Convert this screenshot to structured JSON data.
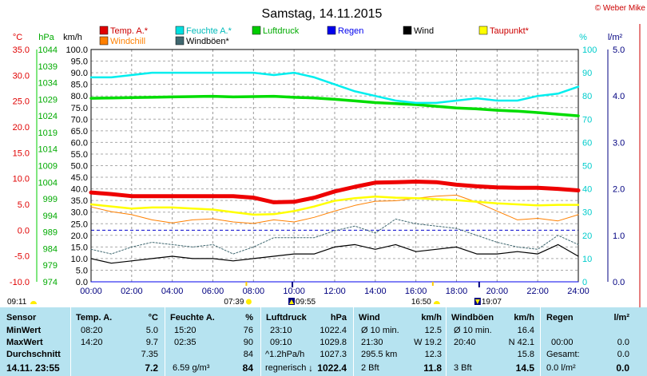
{
  "title": "Samstag, 14.11.2015",
  "copyright": "© Weber Mike",
  "legend": [
    {
      "label": "Temp. A.*",
      "color": "#e00000"
    },
    {
      "label": "Feuchte A.*",
      "color": "#00e0e0"
    },
    {
      "label": "Luftdruck",
      "color": "#00cc00"
    },
    {
      "label": "Regen",
      "color": "#0000ee"
    },
    {
      "label": "Wind",
      "color": "#000000"
    },
    {
      "label": "Taupunkt*",
      "color": "#ffff00"
    },
    {
      "label": "Windchill",
      "color": "#ff8000"
    },
    {
      "label": "Windböen*",
      "color": "#406870"
    }
  ],
  "axes": {
    "temp": {
      "unit": "°C",
      "ticks": [
        "35.0",
        "30.0",
        "25.0",
        "20.0",
        "15.0",
        "10.0",
        "5.0",
        "0.0",
        "-5.0",
        "-10.0"
      ],
      "color": "#e00000"
    },
    "pressure": {
      "unit": "hPa",
      "ticks": [
        "1044",
        "1039",
        "1034",
        "1029",
        "1024",
        "1019",
        "1014",
        "1009",
        "1004",
        "999",
        "994",
        "989",
        "984",
        "979",
        "974"
      ],
      "color": "#00aa00"
    },
    "wind": {
      "unit": "km/h",
      "ticks": [
        "100.0",
        "95.0",
        "90.0",
        "85.0",
        "80.0",
        "75.0",
        "70.0",
        "65.0",
        "60.0",
        "55.0",
        "50.0",
        "45.0",
        "40.0",
        "35.0",
        "30.0",
        "25.0",
        "20.0",
        "15.0",
        "10.0",
        "5.0",
        "0.0"
      ],
      "color": "#000000"
    },
    "humidity": {
      "unit": "%",
      "ticks": [
        "100",
        "90",
        "80",
        "70",
        "60",
        "50",
        "40",
        "30",
        "20",
        "10",
        "0"
      ],
      "color": "#00cccc"
    },
    "rain": {
      "unit": "l/m²",
      "ticks": [
        "5.0",
        "4.0",
        "3.0",
        "2.0",
        "1.0",
        "0.0"
      ],
      "color": "#000080"
    },
    "time_ticks": [
      "00:00",
      "02:00",
      "04:00",
      "06:00",
      "08:00",
      "10:00",
      "12:00",
      "14:00",
      "16:00",
      "18:00",
      "20:00",
      "22:00",
      "24:00"
    ]
  },
  "sun_times": {
    "sunrise": "07:39",
    "sunset": "16:50"
  },
  "moon_times": {
    "moonrise": "09:55",
    "moonset": "19:07"
  },
  "twilight": {
    "start": "09:11"
  },
  "chart_data": {
    "type": "line",
    "title": "Samstag, 14.11.2015",
    "x_range": [
      "00:00",
      "24:00"
    ],
    "x": [
      "00:00",
      "01:00",
      "02:00",
      "03:00",
      "04:00",
      "05:00",
      "06:00",
      "07:00",
      "08:00",
      "09:00",
      "10:00",
      "11:00",
      "12:00",
      "13:00",
      "14:00",
      "15:00",
      "16:00",
      "17:00",
      "18:00",
      "19:00",
      "20:00",
      "21:00",
      "22:00",
      "23:00",
      "24:00"
    ],
    "series": [
      {
        "name": "Temp. A.*",
        "axis": "temp",
        "unit": "°C",
        "values": [
          7.3,
          7.0,
          6.6,
          6.6,
          6.6,
          6.6,
          6.6,
          6.6,
          6.3,
          5.4,
          5.5,
          6.3,
          7.5,
          8.4,
          9.2,
          9.3,
          9.4,
          9.3,
          8.8,
          8.5,
          8.3,
          8.2,
          8.2,
          8.0,
          7.7
        ]
      },
      {
        "name": "Feuchte A.*",
        "axis": "humidity",
        "unit": "%",
        "values": [
          88,
          88,
          89,
          90,
          90,
          90,
          90,
          90,
          90,
          89,
          90,
          88,
          85,
          82,
          80,
          78,
          77,
          77,
          78,
          79,
          78,
          78,
          80,
          81,
          84
        ]
      },
      {
        "name": "Luftdruck",
        "axis": "pressure",
        "unit": "hPa",
        "values": [
          1029.3,
          1029.4,
          1029.5,
          1029.6,
          1029.7,
          1029.8,
          1029.9,
          1029.7,
          1029.8,
          1029.9,
          1029.6,
          1029.4,
          1029.0,
          1028.5,
          1028.0,
          1027.7,
          1027.4,
          1026.9,
          1026.4,
          1026.1,
          1025.7,
          1025.4,
          1025.0,
          1024.5,
          1024.0
        ]
      },
      {
        "name": "Regen",
        "axis": "rain",
        "unit": "l/m²",
        "values": [
          0,
          0,
          0,
          0,
          0,
          0,
          0,
          0,
          0,
          0,
          0,
          0,
          0,
          0,
          0,
          0,
          0,
          0,
          0,
          0,
          0,
          0,
          0,
          0,
          0
        ]
      },
      {
        "name": "Taupunkt*",
        "axis": "temp",
        "unit": "°C",
        "values": [
          5.0,
          4.6,
          4.2,
          4.4,
          4.4,
          4.2,
          4.0,
          3.5,
          3.0,
          3.1,
          3.7,
          4.6,
          5.7,
          6.2,
          6.5,
          6.3,
          6.2,
          6.0,
          5.8,
          5.5,
          5.2,
          5.0,
          4.8,
          4.9,
          4.9
        ]
      },
      {
        "name": "Windchill",
        "axis": "temp",
        "unit": "°C",
        "values": [
          4.5,
          3.6,
          3.0,
          2.0,
          1.4,
          2.0,
          2.2,
          1.6,
          1.3,
          2.0,
          1.6,
          2.5,
          3.7,
          4.8,
          5.6,
          5.7,
          6.2,
          6.6,
          6.8,
          5.4,
          3.7,
          2.0,
          2.3,
          1.8,
          3.0
        ]
      },
      {
        "name": "Wind",
        "axis": "wind",
        "unit": "km/h",
        "values": [
          10,
          8,
          9,
          10,
          11,
          10,
          10,
          9,
          10,
          11,
          12,
          12,
          15,
          16,
          14,
          16,
          13,
          14,
          15,
          12,
          12,
          13,
          12,
          16,
          11
        ]
      },
      {
        "name": "Windböen*",
        "axis": "wind",
        "unit": "km/h",
        "values": [
          14,
          12,
          15,
          17,
          16,
          15,
          16,
          12,
          15,
          19,
          19,
          19,
          22,
          24,
          21,
          27,
          25,
          24,
          23,
          20,
          17,
          15,
          14,
          20,
          16
        ]
      }
    ],
    "ylim": {
      "temp": [
        -10,
        35
      ],
      "pressure": [
        974,
        1044
      ],
      "wind": [
        0,
        100
      ],
      "humidity": [
        0,
        100
      ],
      "rain": [
        0,
        5
      ]
    },
    "reference_line": {
      "axis": "temp",
      "value": 0.0
    },
    "grid": true,
    "legend": "top"
  },
  "stats": {
    "headers": {
      "sensor": "Sensor",
      "temp": "Temp. A.",
      "temp_unit": "°C",
      "hum": "Feuchte A.",
      "hum_unit": "%",
      "press": "Luftdruck",
      "press_unit": "hPa",
      "wind": "Wind",
      "wind_unit": "km/h",
      "gust": "Windböen",
      "gust_unit": "km/h",
      "rain": "Regen",
      "rain_unit": "l/m²"
    },
    "rows": [
      {
        "label": "MinWert",
        "temp_t": "08:20",
        "temp_v": "5.0",
        "hum_t": "15:20",
        "hum_v": "76",
        "press_t": "23:10",
        "press_v": "1022.4",
        "wind_t": "Ø 10 min.",
        "wind_v": "12.5",
        "gust_t": "Ø 10 min.",
        "gust_v": "16.4",
        "rain_t": "",
        "rain_v": ""
      },
      {
        "label": "MaxWert",
        "temp_t": "14:20",
        "temp_v": "9.7",
        "hum_t": "02:35",
        "hum_v": "90",
        "press_t": "09:10",
        "press_v": "1029.8",
        "wind_t": "21:30",
        "wind_v": "W 19.2",
        "gust_t": "20:40",
        "gust_v": "N 42.1",
        "rain_t": "00:00",
        "rain_v": "0.0"
      },
      {
        "label": "Durchschnitt",
        "temp_t": "",
        "temp_v": "7.35",
        "hum_t": "",
        "hum_v": "84",
        "press_t": "^1.2hPa/h",
        "press_v": "1027.3",
        "wind_t": "295.5 km",
        "wind_v": "12.3",
        "gust_t": "",
        "gust_v": "15.8",
        "rain_t": "Gesamt:",
        "rain_v": "0.0"
      }
    ],
    "current": {
      "label": "14.11. 23:55",
      "temp": "7.2",
      "hum_extra": "6.59 g/m³",
      "hum": "84",
      "press_trend": "regnerisch",
      "press_arrow": "↓",
      "press": "1022.4",
      "wind_bft": "2 Bft",
      "wind": "11.8",
      "gust_bft": "3 Bft",
      "gust": "14.5",
      "rain_rate": "0.0 l/m²",
      "rain": "0.0"
    }
  }
}
